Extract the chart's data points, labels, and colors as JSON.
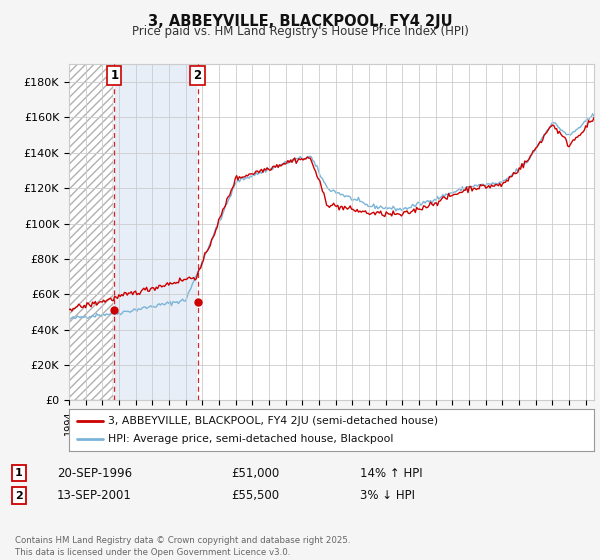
{
  "title": "3, ABBEYVILLE, BLACKPOOL, FY4 2JU",
  "subtitle": "Price paid vs. HM Land Registry's House Price Index (HPI)",
  "ylim": [
    0,
    190000
  ],
  "yticks": [
    0,
    20000,
    40000,
    60000,
    80000,
    100000,
    120000,
    140000,
    160000,
    180000
  ],
  "ytick_labels": [
    "£0",
    "£20K",
    "£40K",
    "£60K",
    "£80K",
    "£100K",
    "£120K",
    "£140K",
    "£160K",
    "£180K"
  ],
  "year_start": 1994,
  "year_end": 2025,
  "hpi_color": "#7ab4d8",
  "price_color": "#cc0000",
  "hatch_fill_color": "#dce8f0",
  "solid_fill_color": "#ddeeff",
  "purchase1_year": 1996.72,
  "purchase1_price": 51000,
  "purchase2_year": 2001.71,
  "purchase2_price": 55500,
  "legend_label1": "3, ABBEYVILLE, BLACKPOOL, FY4 2JU (semi-detached house)",
  "legend_label2": "HPI: Average price, semi-detached house, Blackpool",
  "annotation1_label": "1",
  "annotation1_date": "20-SEP-1996",
  "annotation1_price": "£51,000",
  "annotation1_pct": "14% ↑ HPI",
  "annotation2_label": "2",
  "annotation2_date": "13-SEP-2001",
  "annotation2_price": "£55,500",
  "annotation2_pct": "3% ↓ HPI",
  "footer": "Contains HM Land Registry data © Crown copyright and database right 2025.\nThis data is licensed under the Open Government Licence v3.0.",
  "background_color": "#f5f5f5",
  "plot_bg_color": "#ffffff"
}
